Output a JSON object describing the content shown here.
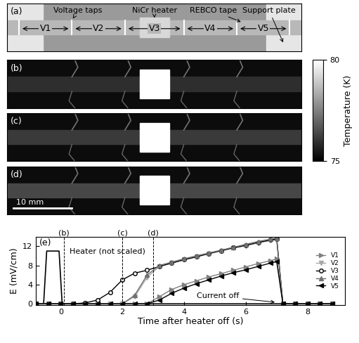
{
  "panels": {
    "a": {
      "label": "(a)",
      "annotations": [
        "Voltage taps",
        "NiCr heater",
        "REBCO tape",
        "Support plate"
      ],
      "segments": [
        "V1",
        "V2",
        "V3",
        "V4",
        "V5"
      ]
    },
    "thermal": {
      "labels": [
        "(b)",
        "(c)",
        "(d)"
      ],
      "scale_bar": "10 mm"
    },
    "colorbar": {
      "label": "Temperature (K)",
      "range": [
        75,
        80
      ],
      "ticks": [
        75,
        80
      ]
    }
  },
  "chart_data": {
    "type": "line",
    "label": "(e)",
    "xlabel": "Time after heater off (s)",
    "ylabel": "E (mV/cm)",
    "xlim": [
      -0.8,
      9.2
    ],
    "ylim": [
      -0.3,
      14
    ],
    "xticks": [
      0,
      2,
      4,
      6,
      8
    ],
    "yticks": [
      0,
      4,
      8,
      12
    ],
    "legend": "center right",
    "x": [
      -0.8,
      -0.4,
      0,
      0.4,
      0.8,
      1.2,
      1.6,
      2.0,
      2.4,
      2.8,
      3.2,
      3.6,
      4.0,
      4.4,
      4.8,
      5.2,
      5.6,
      6.0,
      6.4,
      6.8,
      7.0,
      7.2,
      7.6,
      8.0,
      8.4,
      8.8
    ],
    "series": [
      {
        "name": "V1",
        "color": "#808080",
        "marker": "triangle_right",
        "values": [
          0,
          0,
          0,
          0,
          0,
          0,
          0,
          0,
          0,
          0,
          1.5,
          3.0,
          4.0,
          4.8,
          5.6,
          6.3,
          7.0,
          7.7,
          8.4,
          9.0,
          9.4,
          0,
          0,
          0,
          0,
          0
        ]
      },
      {
        "name": "V2",
        "color": "#a8a8a8",
        "marker": "triangle_down",
        "values": [
          0,
          0,
          0,
          0,
          0,
          0,
          0,
          0,
          1.5,
          5.5,
          7.8,
          8.5,
          9.2,
          9.8,
          10.4,
          11.0,
          11.6,
          12.1,
          12.7,
          13.2,
          13.4,
          0,
          0,
          0,
          0,
          0
        ]
      },
      {
        "name": "V3",
        "color": "#000000",
        "marker": "circle_open",
        "values": [
          0,
          0,
          0,
          0,
          0.2,
          0.8,
          2.4,
          5.0,
          6.4,
          7.0,
          7.8,
          8.5,
          9.2,
          9.8,
          10.5,
          11.1,
          11.7,
          12.2,
          12.8,
          13.3,
          13.5,
          0,
          0,
          0,
          0,
          0
        ]
      },
      {
        "name": "V4",
        "color": "#707070",
        "marker": "triangle_up",
        "values": [
          0,
          0,
          0,
          0,
          0,
          0,
          0,
          0,
          1.8,
          6.0,
          8.0,
          8.7,
          9.4,
          10.0,
          10.6,
          11.2,
          11.8,
          12.4,
          13.0,
          13.5,
          13.7,
          0,
          0,
          0,
          0,
          0
        ]
      },
      {
        "name": "V5",
        "color": "#000000",
        "marker": "triangle_left",
        "values": [
          0,
          0,
          0,
          0,
          0,
          0,
          0,
          0,
          0,
          0,
          0.8,
          2.2,
          3.3,
          4.2,
          5.0,
          5.8,
          6.5,
          7.1,
          7.8,
          8.5,
          8.8,
          0,
          0,
          0,
          0,
          0
        ]
      }
    ],
    "heater": {
      "label": "Heater (not scaled)",
      "color": "#000000",
      "x": [
        -0.8,
        -0.55,
        -0.45,
        -0.05,
        0.05,
        8.8
      ],
      "values": [
        0,
        0,
        11,
        11,
        0,
        0
      ]
    },
    "time_markers": [
      {
        "label": "(b)",
        "time": 0.1
      },
      {
        "label": "(c)",
        "time": 2.0
      },
      {
        "label": "(d)",
        "time": 3.0
      }
    ],
    "current_off": {
      "text": "Current off",
      "time": 7.0
    }
  }
}
